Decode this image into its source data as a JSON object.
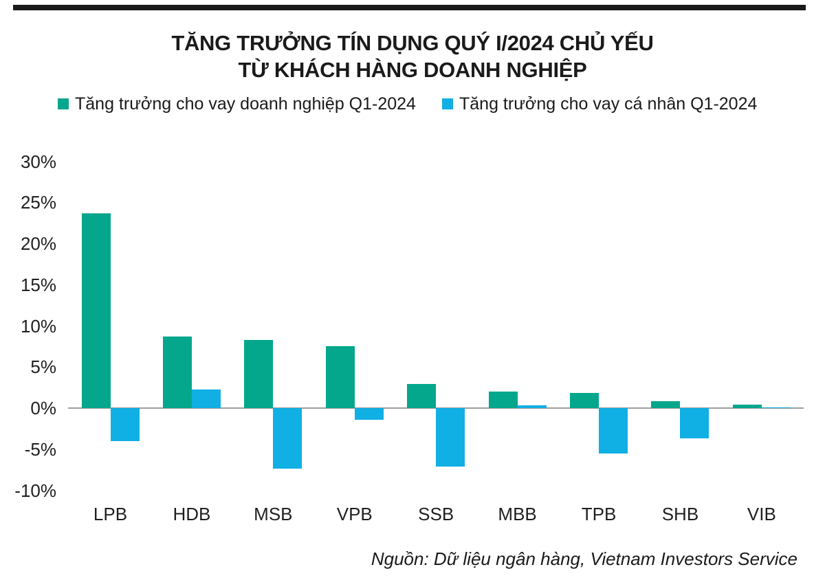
{
  "header": {
    "title_line1": "TĂNG TRƯỞNG TÍN DỤNG QUÝ I/2024 CHỦ YẾU",
    "title_line2": "TỪ KHÁCH HÀNG DOANH NGHIỆP"
  },
  "legend": [
    {
      "key": "corporate",
      "label": "Tăng trưởng cho vay doanh nghiệp Q1-2024",
      "color": "#04A78C"
    },
    {
      "key": "personal",
      "label": "Tăng trưởng cho vay cá nhân Q1-2024",
      "color": "#10AFE4"
    }
  ],
  "source": "Nguồn: Dữ liệu ngân hàng, Vietnam Investors Service",
  "colors": {
    "bar_corporate": "#04A78C",
    "bar_personal": "#10AFE4",
    "axis_line": "#9e9e9e",
    "top_bar": "#1a1a1a",
    "text": "#1a1a1a"
  },
  "chart_data": {
    "type": "bar",
    "title": "TĂNG TRƯỞNG TÍN DỤNG QUÝ I/2024 CHỦ YẾU TỪ KHÁCH HÀNG DOANH NGHIỆP",
    "categories": [
      "LPB",
      "HDB",
      "MSB",
      "VPB",
      "SSB",
      "MBB",
      "TPB",
      "SHB",
      "VIB"
    ],
    "series": [
      {
        "key": "corporate",
        "name": "Tăng trưởng cho vay doanh nghiệp Q1-2024",
        "color": "#04A78C",
        "values": [
          23.7,
          8.7,
          8.3,
          7.5,
          2.9,
          2.0,
          1.8,
          0.8,
          0.4
        ]
      },
      {
        "key": "personal",
        "name": "Tăng trưởng cho vay cá nhân Q1-2024",
        "color": "#10AFE4",
        "values": [
          -4.0,
          2.3,
          -7.4,
          -1.4,
          -7.1,
          0.3,
          -5.5,
          -3.7,
          0.1
        ]
      }
    ],
    "yticks": [
      30,
      25,
      20,
      15,
      10,
      5,
      0,
      -5,
      -10
    ],
    "ytick_labels": [
      "30%",
      "25%",
      "20%",
      "15%",
      "10%",
      "5%",
      "0%",
      "-5%",
      "-10%"
    ],
    "ylim": [
      -10,
      30
    ],
    "unit": "%",
    "grid": false,
    "legend_position": "top",
    "xlabel": "",
    "ylabel": ""
  }
}
